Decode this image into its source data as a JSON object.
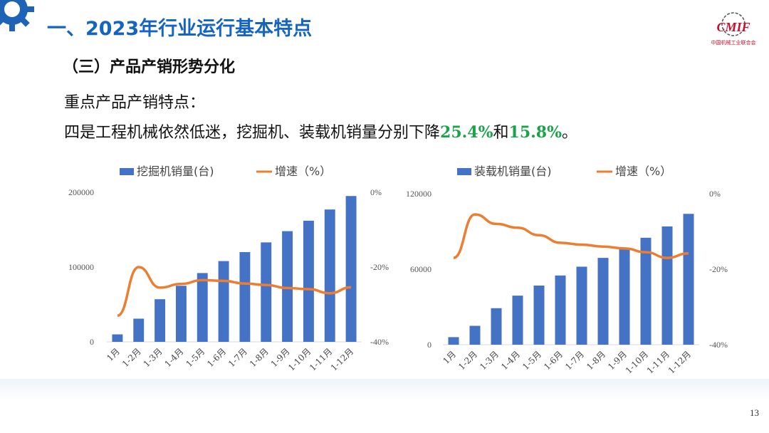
{
  "header": {
    "title": "一、2023年行业运行基本特点",
    "logo_text": "CMIF",
    "logo_subtitle": "中国机械工业联合会"
  },
  "section": {
    "subtitle": "（三）产品产销形势分化",
    "line1": "重点产品产销特点：",
    "line2_prefix": "四是工程机械依然低迷，挖掘机、装载机销量分别下降",
    "line2_value1": "25.4%",
    "line2_mid": "和",
    "line2_value2": "15.8%",
    "line2_suffix": "。"
  },
  "colors": {
    "bar": "#4472c4",
    "line": "#ed7d31",
    "title": "#1565c0",
    "highlight": "#1aa34a"
  },
  "chart_data": [
    {
      "type": "bar",
      "categories": [
        "1月",
        "1-2月",
        "1-3月",
        "1-4月",
        "1-5月",
        "1-6月",
        "1-7月",
        "1-8月",
        "1-9月",
        "1-10月",
        "1-11月",
        "1-12月"
      ],
      "series": [
        {
          "name": "挖掘机销量(台)",
          "type": "bar",
          "axis": "left",
          "values": [
            10000,
            31000,
            57000,
            75000,
            92000,
            108000,
            120000,
            133000,
            148000,
            162000,
            177000,
            195000
          ]
        },
        {
          "name": "增速（%）",
          "type": "line",
          "axis": "right",
          "values": [
            -33,
            -20,
            -25.5,
            -24.5,
            -23.5,
            -23.7,
            -24.4,
            -24.8,
            -25.6,
            -25.9,
            -27,
            -25.4
          ]
        }
      ],
      "left_axis": {
        "ylim": [
          0,
          200000
        ],
        "ticks": [
          "200000",
          "100000",
          "0"
        ]
      },
      "right_axis": {
        "ylim": [
          -40,
          0
        ],
        "ticks": [
          "0%",
          "-20%",
          "-40%"
        ]
      },
      "legend": "top"
    },
    {
      "type": "bar",
      "categories": [
        "1月",
        "1-2月",
        "1-3月",
        "1-4月",
        "1-5月",
        "1-6月",
        "1-7月",
        "1-8月",
        "1-9月",
        "1-10月",
        "1-11月",
        "1-12月"
      ],
      "series": [
        {
          "name": "装载机销量(台)",
          "type": "bar",
          "axis": "left",
          "values": [
            6000,
            15000,
            29000,
            39000,
            47000,
            55000,
            62000,
            69000,
            77000,
            85000,
            94000,
            104000
          ]
        },
        {
          "name": "增速（%）",
          "type": "line",
          "axis": "right",
          "values": [
            -17,
            -5.5,
            -8,
            -9,
            -11,
            -13,
            -13.5,
            -14,
            -14.5,
            -15.5,
            -17,
            -15.8
          ]
        }
      ],
      "left_axis": {
        "ylim": [
          0,
          120000
        ],
        "ticks": [
          "120000",
          "60000",
          "0"
        ]
      },
      "right_axis": {
        "ylim": [
          -40,
          0
        ],
        "ticks": [
          "0%",
          "-20%",
          "-40%"
        ]
      },
      "legend": "top"
    }
  ],
  "page_number": "13"
}
